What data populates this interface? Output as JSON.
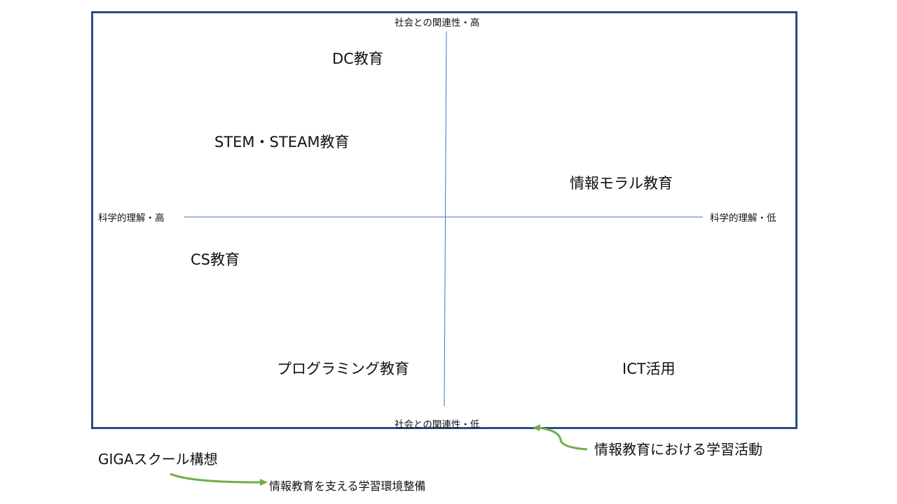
{
  "axes": {
    "top": "社会との関連性・高",
    "bottom": "社会との関連性・低",
    "left": "科学的理解・高",
    "right": "科学的理解・低"
  },
  "items": [
    {
      "label": "DC教育",
      "quadrant": "top-left"
    },
    {
      "label": "STEM・STEAM教育",
      "quadrant": "top-left"
    },
    {
      "label": "情報モラル教育",
      "quadrant": "top-right"
    },
    {
      "label": "CS教育",
      "quadrant": "bottom-left"
    },
    {
      "label": "プログラミング教育",
      "quadrant": "bottom-left"
    },
    {
      "label": "ICT活用",
      "quadrant": "bottom-right"
    }
  ],
  "annotations": {
    "learning_activities": "情報教育における学習活動",
    "giga": "GIGAスクール構想",
    "environment": "情報教育を支える学習環境整備"
  },
  "colors": {
    "frame": "#2f4a8a",
    "axis_line": "#4472c4",
    "arrow": "#70ad47"
  }
}
